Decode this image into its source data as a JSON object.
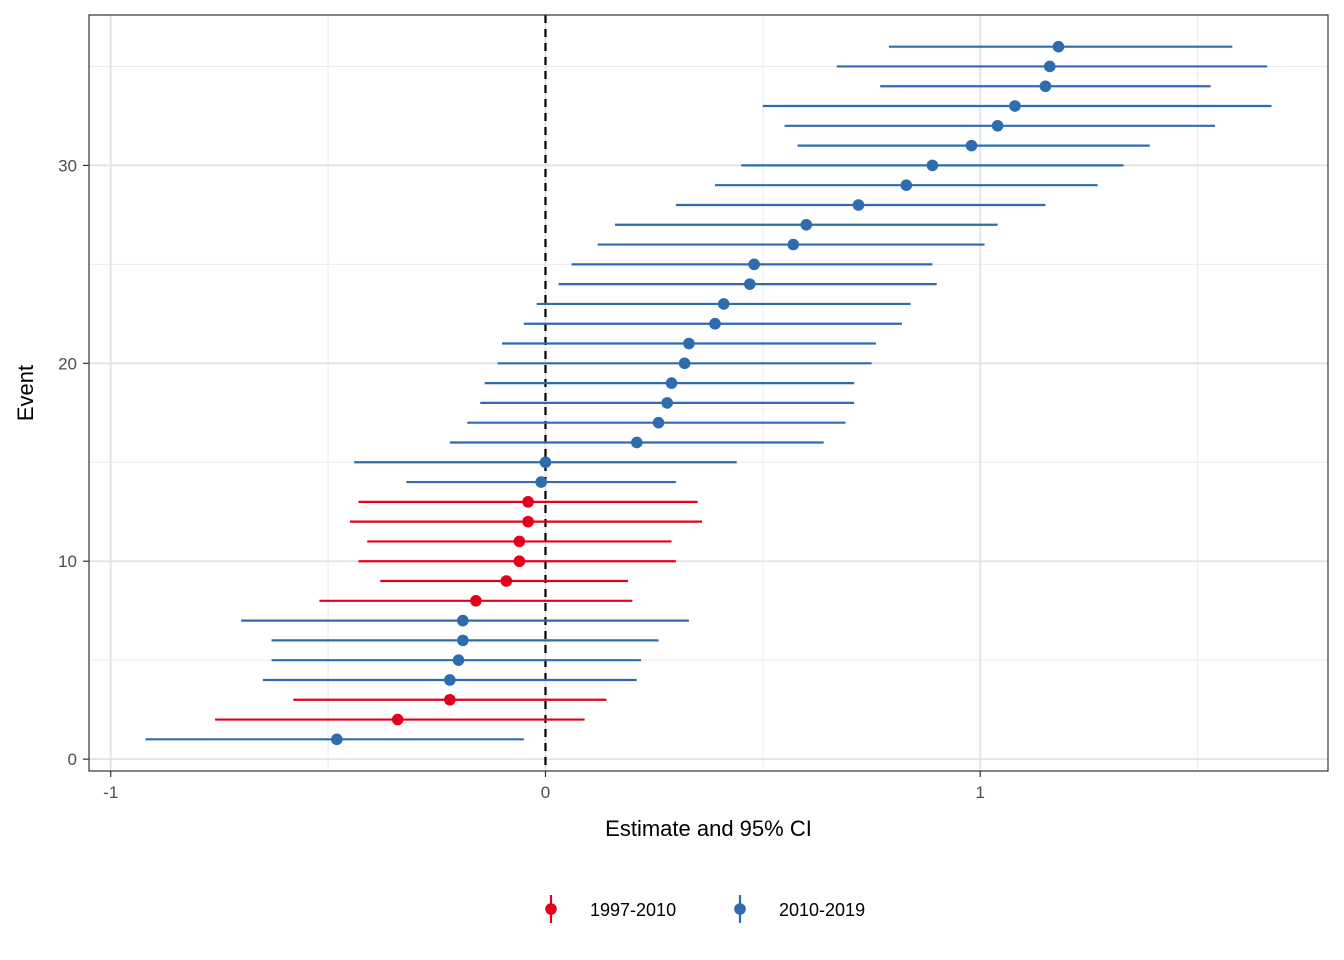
{
  "chart_data": {
    "type": "scatter",
    "subtype": "forest-plot",
    "title": "",
    "xlabel": "Estimate and 95% CI",
    "ylabel": "Event",
    "xlim": [
      -1.05,
      1.8
    ],
    "ylim": [
      -0.6,
      37.6
    ],
    "x_ticks": [
      -1,
      0,
      1
    ],
    "x_tick_labels": [
      "-1",
      "0",
      "1"
    ],
    "y_ticks": [
      0,
      10,
      20,
      30
    ],
    "y_tick_labels": [
      "0",
      "10",
      "20",
      "30"
    ],
    "grid": true,
    "reference_line": {
      "x": 0,
      "style": "dashed"
    },
    "legend": {
      "position": "bottom",
      "entries": [
        "1997-2010",
        "2010-2019"
      ]
    },
    "colors": {
      "1997-2010": "#e3001b",
      "2010-2019": "#2e6cae"
    },
    "points": [
      {
        "event": 1,
        "estimate": -0.48,
        "lower": -0.92,
        "upper": -0.05,
        "group": "2010-2019"
      },
      {
        "event": 2,
        "estimate": -0.34,
        "lower": -0.76,
        "upper": 0.09,
        "group": "1997-2010"
      },
      {
        "event": 3,
        "estimate": -0.22,
        "lower": -0.58,
        "upper": 0.14,
        "group": "1997-2010"
      },
      {
        "event": 4,
        "estimate": -0.22,
        "lower": -0.65,
        "upper": 0.21,
        "group": "2010-2019"
      },
      {
        "event": 5,
        "estimate": -0.2,
        "lower": -0.63,
        "upper": 0.22,
        "group": "2010-2019"
      },
      {
        "event": 6,
        "estimate": -0.19,
        "lower": -0.63,
        "upper": 0.26,
        "group": "2010-2019"
      },
      {
        "event": 7,
        "estimate": -0.19,
        "lower": -0.7,
        "upper": 0.33,
        "group": "2010-2019"
      },
      {
        "event": 8,
        "estimate": -0.16,
        "lower": -0.52,
        "upper": 0.2,
        "group": "1997-2010"
      },
      {
        "event": 9,
        "estimate": -0.09,
        "lower": -0.38,
        "upper": 0.19,
        "group": "1997-2010"
      },
      {
        "event": 10,
        "estimate": -0.06,
        "lower": -0.43,
        "upper": 0.3,
        "group": "1997-2010"
      },
      {
        "event": 11,
        "estimate": -0.06,
        "lower": -0.41,
        "upper": 0.29,
        "group": "1997-2010"
      },
      {
        "event": 12,
        "estimate": -0.04,
        "lower": -0.45,
        "upper": 0.36,
        "group": "1997-2010"
      },
      {
        "event": 13,
        "estimate": -0.04,
        "lower": -0.43,
        "upper": 0.35,
        "group": "1997-2010"
      },
      {
        "event": 14,
        "estimate": -0.01,
        "lower": -0.32,
        "upper": 0.3,
        "group": "2010-2019"
      },
      {
        "event": 15,
        "estimate": 0,
        "lower": -0.44,
        "upper": 0.44,
        "group": "2010-2019"
      },
      {
        "event": 16,
        "estimate": 0.21,
        "lower": -0.22,
        "upper": 0.64,
        "group": "2010-2019"
      },
      {
        "event": 17,
        "estimate": 0.26,
        "lower": -0.18,
        "upper": 0.69,
        "group": "2010-2019"
      },
      {
        "event": 18,
        "estimate": 0.28,
        "lower": -0.15,
        "upper": 0.71,
        "group": "2010-2019"
      },
      {
        "event": 19,
        "estimate": 0.29,
        "lower": -0.14,
        "upper": 0.71,
        "group": "2010-2019"
      },
      {
        "event": 20,
        "estimate": 0.32,
        "lower": -0.11,
        "upper": 0.75,
        "group": "2010-2019"
      },
      {
        "event": 21,
        "estimate": 0.33,
        "lower": -0.1,
        "upper": 0.76,
        "group": "2010-2019"
      },
      {
        "event": 22,
        "estimate": 0.39,
        "lower": -0.05,
        "upper": 0.82,
        "group": "2010-2019"
      },
      {
        "event": 23,
        "estimate": 0.41,
        "lower": -0.02,
        "upper": 0.84,
        "group": "2010-2019"
      },
      {
        "event": 24,
        "estimate": 0.47,
        "lower": 0.03,
        "upper": 0.9,
        "group": "2010-2019"
      },
      {
        "event": 25,
        "estimate": 0.48,
        "lower": 0.06,
        "upper": 0.89,
        "group": "2010-2019"
      },
      {
        "event": 26,
        "estimate": 0.57,
        "lower": 0.12,
        "upper": 1.01,
        "group": "2010-2019"
      },
      {
        "event": 27,
        "estimate": 0.6,
        "lower": 0.16,
        "upper": 1.04,
        "group": "2010-2019"
      },
      {
        "event": 28,
        "estimate": 0.72,
        "lower": 0.3,
        "upper": 1.15,
        "group": "2010-2019"
      },
      {
        "event": 29,
        "estimate": 0.83,
        "lower": 0.39,
        "upper": 1.27,
        "group": "2010-2019"
      },
      {
        "event": 30,
        "estimate": 0.89,
        "lower": 0.45,
        "upper": 1.33,
        "group": "2010-2019"
      },
      {
        "event": 31,
        "estimate": 0.98,
        "lower": 0.58,
        "upper": 1.39,
        "group": "2010-2019"
      },
      {
        "event": 32,
        "estimate": 1.04,
        "lower": 0.55,
        "upper": 1.54,
        "group": "2010-2019"
      },
      {
        "event": 33,
        "estimate": 1.08,
        "lower": 0.5,
        "upper": 1.67,
        "group": "2010-2019"
      },
      {
        "event": 34,
        "estimate": 1.15,
        "lower": 0.77,
        "upper": 1.53,
        "group": "2010-2019"
      },
      {
        "event": 35,
        "estimate": 1.16,
        "lower": 0.67,
        "upper": 1.66,
        "group": "2010-2019"
      },
      {
        "event": 36,
        "estimate": 1.18,
        "lower": 0.79,
        "upper": 1.58,
        "group": "2010-2019"
      }
    ]
  }
}
